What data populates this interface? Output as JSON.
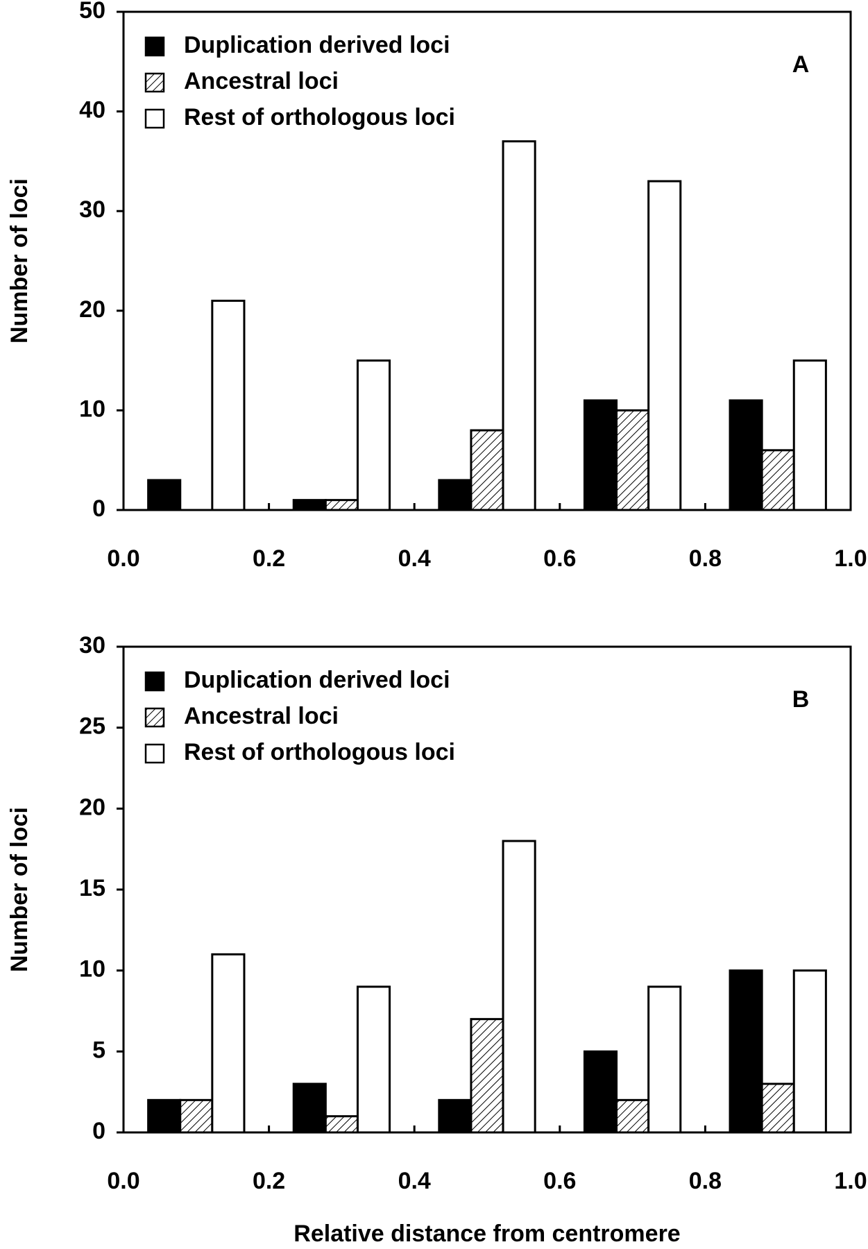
{
  "chart_data": [
    {
      "type": "grouped-histogram",
      "annotation": "A",
      "ylabel": "Number of loci",
      "bins": [
        0,
        0.2,
        0.4,
        0.6,
        0.8,
        1.0
      ],
      "series": [
        {
          "name": "Duplication derived loci",
          "color": "#000000",
          "values": [
            3,
            1,
            3,
            11,
            11
          ]
        },
        {
          "name": "Ancestral loci",
          "color": "#ffffff",
          "hatch": true,
          "values": [
            0,
            1,
            8,
            10,
            6
          ]
        },
        {
          "name": "Rest of orthologous loci",
          "color": "#ffffff",
          "values": [
            21,
            15,
            37,
            33,
            15
          ]
        }
      ],
      "xlim": [
        0,
        1.0
      ],
      "xticks": [
        {
          "value": 0,
          "label": "0.0"
        },
        0.2,
        0.4,
        0.6,
        0.8,
        {
          "value": 1.0,
          "label": "1.0"
        }
      ],
      "ylim": [
        0,
        50
      ],
      "yticks": [
        0,
        10,
        20,
        30,
        40,
        50
      ],
      "legend": "upper left"
    },
    {
      "type": "grouped-histogram",
      "annotation": "B",
      "ylabel": "Number of loci",
      "xlabel": "Relative distance from centromere",
      "bins": [
        0,
        0.2,
        0.4,
        0.6,
        0.8,
        1.0
      ],
      "series": [
        {
          "name": "Duplication derived loci",
          "color": "#000000",
          "values": [
            2,
            3,
            2,
            5,
            10
          ]
        },
        {
          "name": "Ancestral loci",
          "color": "#ffffff",
          "hatch": true,
          "values": [
            2,
            1,
            7,
            2,
            3
          ]
        },
        {
          "name": "Rest of orthologous loci",
          "color": "#ffffff",
          "values": [
            11,
            9,
            18,
            9,
            10
          ]
        }
      ],
      "xlim": [
        0,
        1.0
      ],
      "xticks": [
        {
          "value": 0,
          "label": "0.0"
        },
        0.2,
        0.4,
        0.6,
        0.8,
        {
          "value": 1.0,
          "label": "1.0"
        }
      ],
      "ylim": [
        0,
        30
      ],
      "yticks": [
        0,
        5,
        10,
        15,
        20,
        25,
        30
      ],
      "legend": "upper left"
    }
  ]
}
